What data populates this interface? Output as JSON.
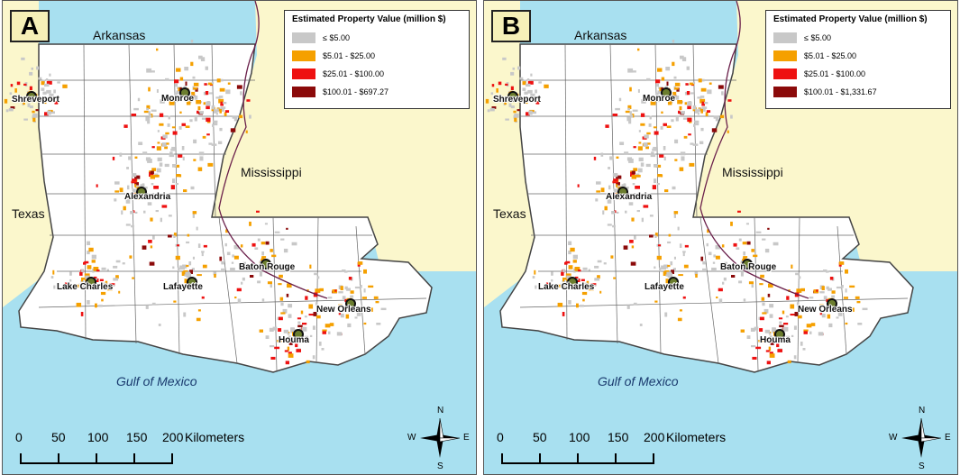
{
  "panels": [
    {
      "letter": "A",
      "legend": {
        "title": "Estimated Property Value (million $)",
        "items": [
          {
            "label": "≤ $5.00",
            "color": "#c8c8c8"
          },
          {
            "label": "$5.01 - $25.00",
            "color": "#f5a000"
          },
          {
            "label": "$25.01 - $100.00",
            "color": "#ee1111"
          },
          {
            "label": "$100.01 - $697.27",
            "color": "#8b0a0a"
          }
        ]
      }
    },
    {
      "letter": "B",
      "legend": {
        "title": "Estimated Property Value (million $)",
        "items": [
          {
            "label": "≤ $5.00",
            "color": "#c8c8c8"
          },
          {
            "label": "$5.01 - $25.00",
            "color": "#f5a000"
          },
          {
            "label": "$25.01 - $100.00",
            "color": "#ee1111"
          },
          {
            "label": "$100.01 - $1,331.67",
            "color": "#8b0a0a"
          }
        ]
      }
    }
  ],
  "labels": {
    "arkansas": "Arkansas",
    "mississippi": "Mississippi",
    "texas": "Texas",
    "gulf": "Gulf of Mexico"
  },
  "cities": [
    "Shreveport",
    "Monroe",
    "Alexandria",
    "Baton Rouge",
    "Lake Charles",
    "Lafayette",
    "New Orleans",
    "Houma"
  ],
  "scale": {
    "ticks": [
      "0",
      "50",
      "100",
      "150",
      "200"
    ],
    "unit": "Kilometers"
  },
  "compass": {
    "n": "N",
    "s": "S",
    "e": "E",
    "w": "W"
  },
  "colors": {
    "land_outside": "#fbf7cc",
    "water": "#a8e0f0",
    "louisiana": "#ffffff",
    "border": "#444444"
  }
}
